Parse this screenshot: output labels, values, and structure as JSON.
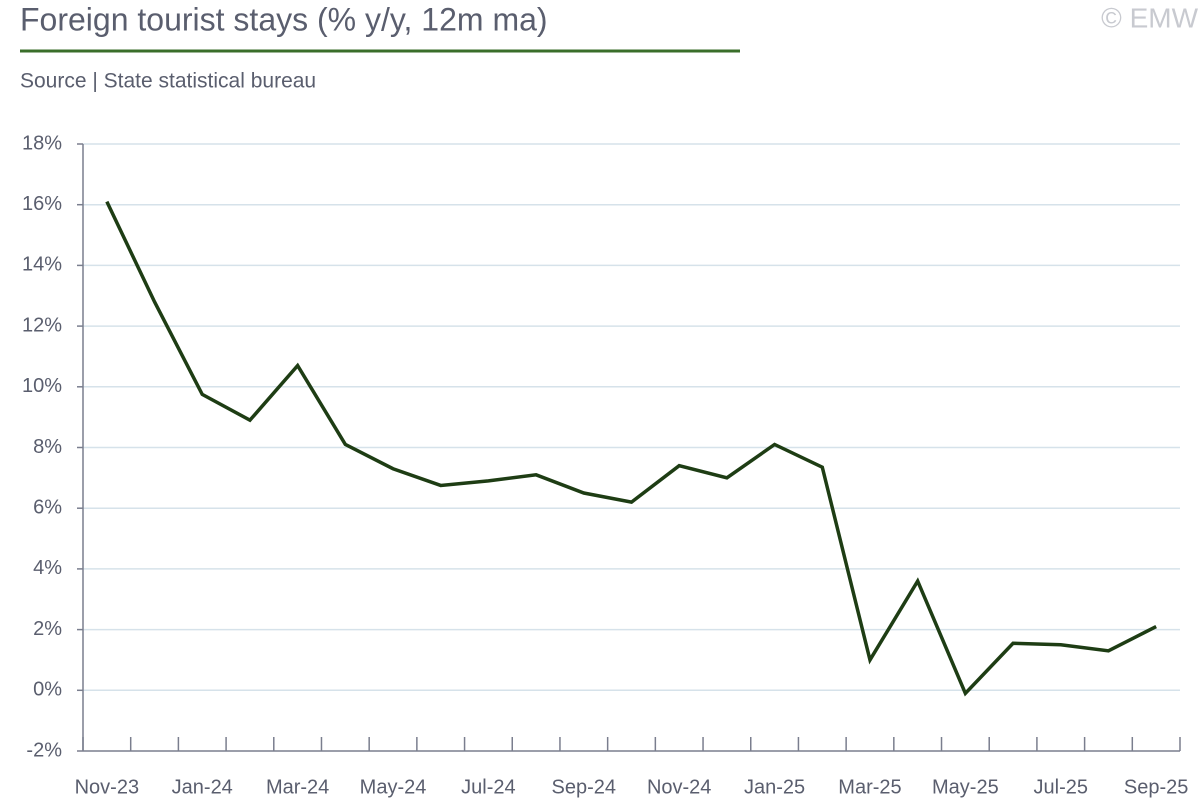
{
  "chart_data": {
    "type": "line",
    "title": "Foreign tourist stays (% y/y, 12m ma)",
    "subtitle": "Source | State statistical bureau",
    "copyright": "© EMW",
    "categories": [
      "Nov-23",
      null,
      "Jan-24",
      null,
      "Mar-24",
      null,
      "May-24",
      null,
      "Jul-24",
      null,
      "Sep-24",
      null,
      "Nov-24",
      null,
      "Jan-25",
      null,
      "Mar-25",
      null,
      "May-25",
      null,
      "Jul-25",
      null,
      "Sep-25"
    ],
    "series": [
      {
        "name": "Foreign tourist stays",
        "color": "#1e3d14",
        "values": [
          16.1,
          12.8,
          9.75,
          8.9,
          10.7,
          8.1,
          7.3,
          6.75,
          6.9,
          7.1,
          6.5,
          6.2,
          7.4,
          7.0,
          8.1,
          7.35,
          1.0,
          3.6,
          -0.1,
          1.55,
          1.5,
          1.3,
          2.1
        ]
      }
    ],
    "ylim": [
      -2,
      18
    ],
    "yticks": [
      {
        "value": -2,
        "label": "-2%"
      },
      {
        "value": 0,
        "label": "0%"
      },
      {
        "value": 2,
        "label": "2%"
      },
      {
        "value": 4,
        "label": "4%"
      },
      {
        "value": 6,
        "label": "6%"
      },
      {
        "value": 8,
        "label": "8%"
      },
      {
        "value": 10,
        "label": "10%"
      },
      {
        "value": 12,
        "label": "12%"
      },
      {
        "value": 14,
        "label": "14%"
      },
      {
        "value": 16,
        "label": "16%"
      },
      {
        "value": 18,
        "label": "18%"
      }
    ],
    "grid": true
  }
}
